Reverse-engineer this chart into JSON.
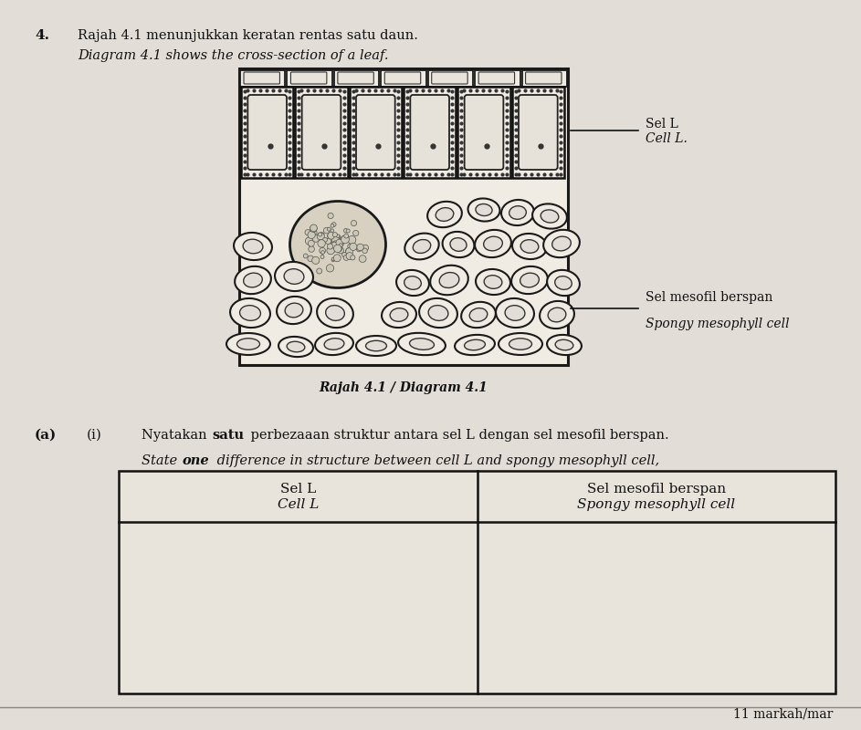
{
  "bg_color": "#ccc8be",
  "page_color": "#e2ddd6",
  "title_number": "4.",
  "title_malay": "Rajah 4.1 menunjukkan keratan rentas satu daun.",
  "title_english": "Diagram 4.1 shows the cross-section of a leaf.",
  "diagram_caption": "Rajah 4.1 / Diagram 4.1",
  "label_cell_L_malay": "Sel L",
  "label_cell_L_english": "Cell L.",
  "label_spongy_malay": "Sel mesofil berspan",
  "label_spongy_english": "Spongy mesophyll cell",
  "question_prefix": "(a)",
  "question_number": "(i)",
  "table_header_left_line1": "Sel L",
  "table_header_left_line2": "Cell L",
  "table_header_right_line1": "Sel mesofil berspan",
  "table_header_right_line2": "Spongy mesophyll cell",
  "marks_text": "11 markah/mar"
}
